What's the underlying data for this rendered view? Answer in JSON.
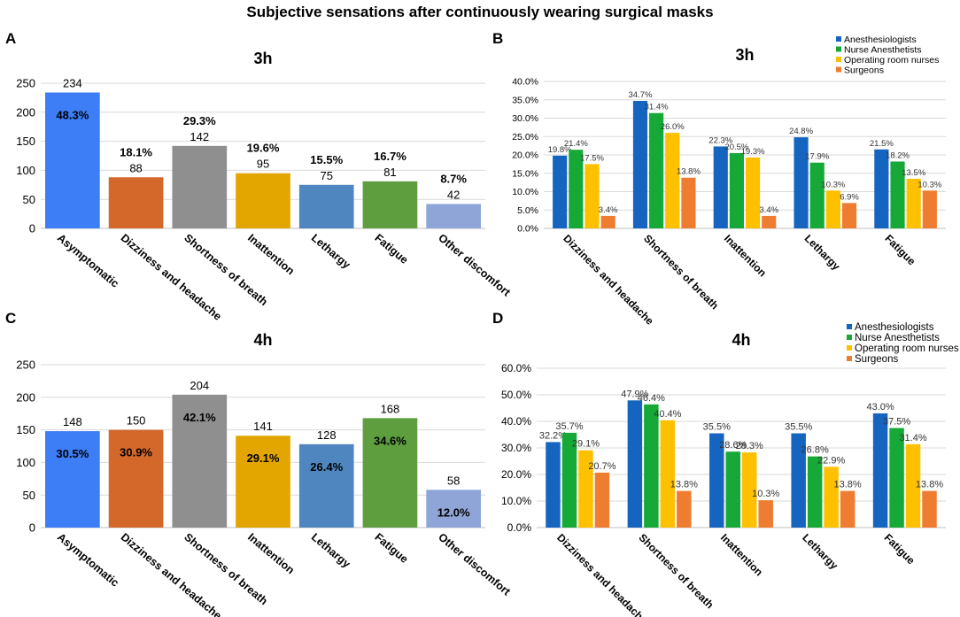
{
  "figure_title": "Subjective sensations after continuously wearing surgical masks",
  "colors": {
    "asymptomatic": "#3d7df5",
    "dizziness": "#d4682a",
    "shortness": "#8f8f8f",
    "inattention": "#e3a500",
    "lethargy": "#4f86bf",
    "fatigue": "#5e9e3f",
    "other": "#8fa5d8",
    "anesthesiologists": "#1565c0",
    "nurse_anesthetists": "#17a938",
    "or_nurses": "#ffc000",
    "surgeons": "#ee7d31"
  },
  "chart_data": [
    {
      "panel": "A",
      "type": "bar",
      "title": "3h",
      "categories": [
        "Asymptomatic",
        "Dizziness and headache",
        "Shortness of breath",
        "Inattention",
        "Lethargy",
        "Fatigue",
        "Other discomfort"
      ],
      "values": [
        234,
        88,
        142,
        95,
        75,
        81,
        42
      ],
      "percent_labels": [
        "48.3%",
        "18.1%",
        "29.3%",
        "19.6%",
        "15.5%",
        "16.7%",
        "8.7%"
      ],
      "percent_inside": [
        true,
        false,
        false,
        false,
        false,
        false,
        false
      ],
      "bar_colors": [
        "#3d7df5",
        "#d4682a",
        "#8f8f8f",
        "#e3a500",
        "#4f86bf",
        "#5e9e3f",
        "#8fa5d8"
      ],
      "ylim": [
        0,
        250
      ],
      "yticks": [
        "0",
        "50",
        "100",
        "150",
        "200",
        "250"
      ],
      "grid": true
    },
    {
      "panel": "B",
      "type": "bar",
      "title": "3h",
      "categories": [
        "Dizziness and headache",
        "Shortness of breath",
        "Inattention",
        "Lethargy",
        "Fatigue"
      ],
      "series": [
        {
          "name": "Anesthesiologists",
          "color": "#1565c0",
          "values": [
            19.8,
            34.7,
            22.3,
            24.8,
            21.5
          ],
          "labels": [
            "19.8%",
            "34.7%",
            "22.3%",
            "24.8%",
            "21.5%"
          ]
        },
        {
          "name": "Nurse Anesthetists",
          "color": "#17a938",
          "values": [
            21.4,
            31.4,
            20.5,
            17.9,
            18.2
          ],
          "labels": [
            "21.4%",
            "31.4%",
            "20.5%",
            "17.9%",
            "18.2%"
          ]
        },
        {
          "name": "Operating room nurses",
          "color": "#ffc000",
          "values": [
            17.5,
            26.0,
            19.3,
            10.3,
            13.5
          ],
          "labels": [
            "17.5%",
            "26.0%",
            "19.3%",
            "10.3%",
            "13.5%"
          ]
        },
        {
          "name": "Surgeons",
          "color": "#ee7d31",
          "values": [
            3.4,
            13.8,
            3.4,
            6.9,
            10.3
          ],
          "labels": [
            "3.4%",
            "13.8%",
            "3.4%",
            "6.9%",
            "10.3%"
          ]
        }
      ],
      "ylim": [
        0,
        40
      ],
      "yticks": [
        "0.0%",
        "5.0%",
        "10.0%",
        "15.0%",
        "20.0%",
        "25.0%",
        "30.0%",
        "35.0%",
        "40.0%"
      ],
      "legend": "top-right",
      "grid": true
    },
    {
      "panel": "C",
      "type": "bar",
      "title": "4h",
      "categories": [
        "Asymptomatic",
        "Dizziness and headache",
        "Shortness of breath",
        "Inattention",
        "Lethargy",
        "Fatigue",
        "Other discomfort"
      ],
      "values": [
        148,
        150,
        204,
        141,
        128,
        168,
        58
      ],
      "percent_labels": [
        "30.5%",
        "30.9%",
        "42.1%",
        "29.1%",
        "26.4%",
        "34.6%",
        "12.0%"
      ],
      "percent_inside": [
        true,
        true,
        true,
        true,
        true,
        true,
        true
      ],
      "bar_colors": [
        "#3d7df5",
        "#d4682a",
        "#8f8f8f",
        "#e3a500",
        "#4f86bf",
        "#5e9e3f",
        "#8fa5d8"
      ],
      "ylim": [
        0,
        250
      ],
      "yticks": [
        "0",
        "50",
        "100",
        "150",
        "200",
        "250"
      ],
      "grid": true
    },
    {
      "panel": "D",
      "type": "bar",
      "title": "4h",
      "categories": [
        "Dizziness and headache",
        "Shortness of breath",
        "Inattention",
        "Lethargy",
        "Fatigue"
      ],
      "series": [
        {
          "name": "Anesthesiologists",
          "color": "#1565c0",
          "values": [
            32.2,
            47.9,
            35.5,
            35.5,
            43.0
          ],
          "labels": [
            "32.2%",
            "47.9%",
            "35.5%",
            "35.5%",
            "43.0%"
          ]
        },
        {
          "name": "Nurse Anesthetists",
          "color": "#17a938",
          "values": [
            35.7,
            46.4,
            28.6,
            26.8,
            37.5
          ],
          "labels": [
            "35.7%",
            "46.4%",
            "28.6%",
            "26.8%",
            "37.5%"
          ]
        },
        {
          "name": "Operating room nurses",
          "color": "#ffc000",
          "values": [
            29.1,
            40.4,
            28.3,
            22.9,
            31.4
          ],
          "labels": [
            "29.1%",
            "40.4%",
            "28.3%",
            "22.9%",
            "31.4%"
          ]
        },
        {
          "name": "Surgeons",
          "color": "#ee7d31",
          "values": [
            20.7,
            13.8,
            10.3,
            13.8,
            13.8
          ],
          "labels": [
            "20.7%",
            "13.8%",
            "10.3%",
            "13.8%",
            "13.8%"
          ]
        }
      ],
      "ylim": [
        0,
        60
      ],
      "yticks": [
        "0.0%",
        "10.0%",
        "20.0%",
        "30.0%",
        "40.0%",
        "50.0%",
        "60.0%"
      ],
      "legend": "top-right",
      "grid": true
    }
  ]
}
